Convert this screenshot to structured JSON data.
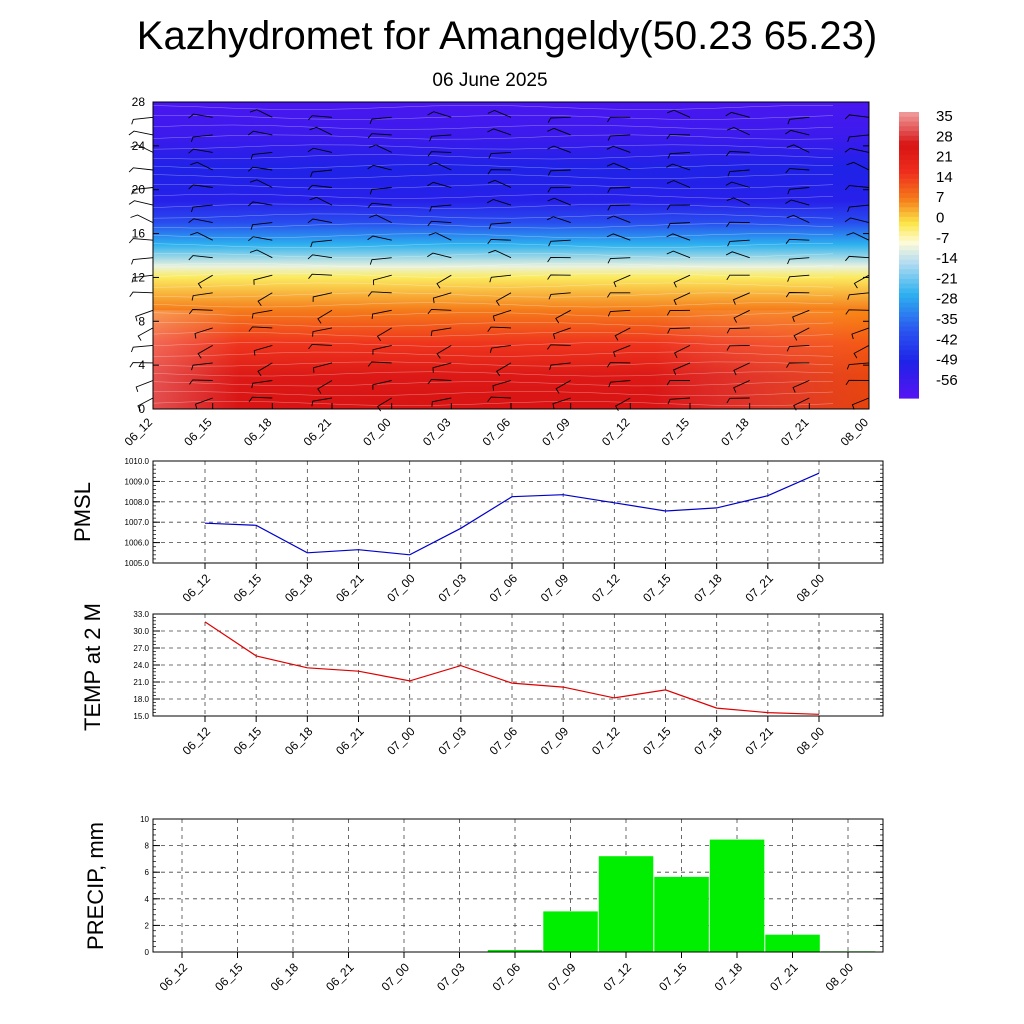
{
  "title": "Kazhydromet for Amangeldy(50.23 65.23)",
  "subtitle": "06 June 2025",
  "chart_data": [
    {
      "type": "heatmap",
      "x_ticks": [
        "06_12",
        "06_15",
        "06_18",
        "06_21",
        "07_00",
        "07_03",
        "07_06",
        "07_09",
        "07_12",
        "07_15",
        "07_18",
        "07_21",
        "08_00"
      ],
      "ylim": [
        0,
        28
      ],
      "y_ticks": [
        "0",
        "4",
        "8",
        "12",
        "16",
        "20",
        "24",
        "28"
      ],
      "colorbar": [
        "35",
        "28",
        "21",
        "14",
        "7",
        "0",
        "-7",
        "-14",
        "-21",
        "-28",
        "-35",
        "-42",
        "-49",
        "-56"
      ],
      "colorbar_range": [
        -63,
        42
      ],
      "colors": {
        "warmest": "#f0a0a0",
        "hot": "#d81414",
        "red": "#ee2d1d",
        "orange": "#f57b1a",
        "yellow": "#fbe74a",
        "pale": "#fdfbd8",
        "lightblue": "#b8ddf1",
        "cyan": "#2db1ef",
        "blue": "#2a56f0",
        "deepblue": "#1f22e8",
        "violet": "#5614f2"
      },
      "profile": [
        {
          "level": 0,
          "value": 30
        },
        {
          "level": 3,
          "value": 28
        },
        {
          "level": 6,
          "value": 19
        },
        {
          "level": 9,
          "value": 10
        },
        {
          "level": 12,
          "value": 0
        },
        {
          "level": 13,
          "value": -8
        },
        {
          "level": 15,
          "value": -25
        },
        {
          "level": 17,
          "value": -40
        },
        {
          "level": 19,
          "value": -52
        },
        {
          "level": 22,
          "value": -50
        },
        {
          "level": 25,
          "value": -57
        },
        {
          "level": 28,
          "value": -60
        }
      ],
      "wind_barbs": true
    },
    {
      "type": "line",
      "ylabel": "PMSL",
      "ylim": [
        1005.0,
        1010.0
      ],
      "y_ticks": [
        "1005.0",
        "1006.0",
        "1007.0",
        "1008.0",
        "1009.0",
        "1010.0"
      ],
      "x": [
        "06_12",
        "06_15",
        "06_18",
        "06_21",
        "07_00",
        "07_03",
        "07_06",
        "07_09",
        "07_12",
        "07_15",
        "07_18",
        "07_21",
        "08_00"
      ],
      "values": [
        1006.95,
        1006.85,
        1005.5,
        1005.65,
        1005.4,
        1006.7,
        1008.25,
        1008.35,
        1007.95,
        1007.55,
        1007.7,
        1008.3,
        1009.4
      ],
      "color": "#0000cc"
    },
    {
      "type": "line",
      "ylabel": "TEMP at 2 M",
      "ylim": [
        15.0,
        33.0
      ],
      "y_ticks": [
        "15.0",
        "18.0",
        "21.0",
        "24.0",
        "27.0",
        "30.0",
        "33.0"
      ],
      "x": [
        "06_12",
        "06_15",
        "06_18",
        "06_21",
        "07_00",
        "07_03",
        "07_06",
        "07_09",
        "07_12",
        "07_15",
        "07_18",
        "07_21",
        "08_00"
      ],
      "values": [
        31.6,
        25.6,
        23.5,
        22.9,
        21.2,
        23.9,
        20.8,
        20.1,
        18.2,
        19.6,
        16.4,
        15.6,
        15.3
      ],
      "color": "#dd0000"
    },
    {
      "type": "bar",
      "ylabel": "PRECIP, mm",
      "ylim": [
        0,
        10
      ],
      "y_ticks": [
        "0",
        "2",
        "4",
        "6",
        "8",
        "10"
      ],
      "categories": [
        "06_12",
        "06_15",
        "06_18",
        "06_21",
        "07_00",
        "07_03",
        "07_06",
        "07_09",
        "07_12",
        "07_15",
        "07_18",
        "07_21",
        "08_00"
      ],
      "values": [
        0,
        0,
        0,
        0,
        0,
        0,
        0.15,
        3.05,
        7.2,
        5.65,
        8.45,
        1.3,
        0.05
      ],
      "color": "#00ee00"
    }
  ]
}
